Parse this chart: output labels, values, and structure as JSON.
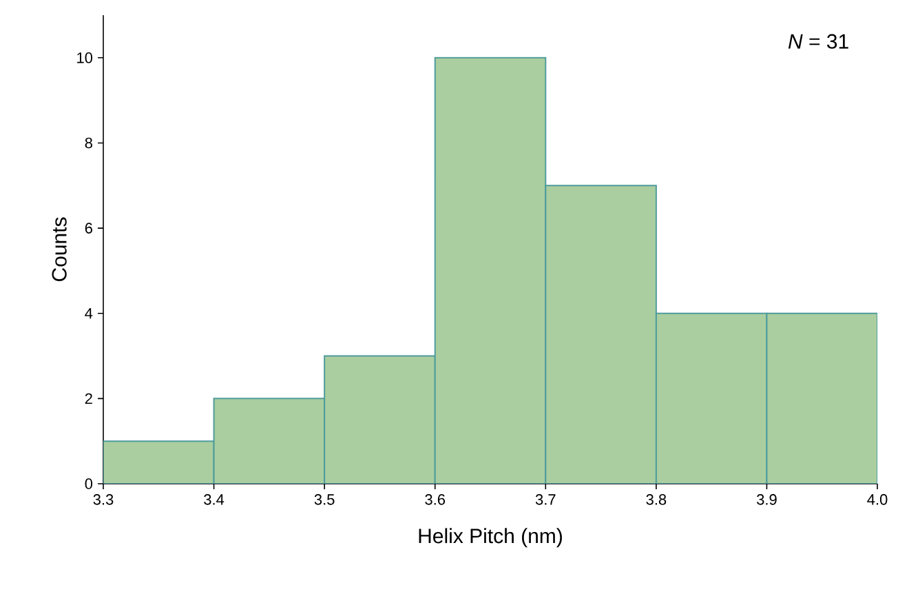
{
  "chart_data": {
    "type": "histogram",
    "xlabel": "Helix Pitch (nm)",
    "ylabel": "Counts",
    "bins": [
      3.3,
      3.4,
      3.5,
      3.6,
      3.7,
      3.8,
      3.9,
      4.0
    ],
    "values": [
      1,
      2,
      3,
      10,
      7,
      4,
      4
    ],
    "color": "#abcea0",
    "xlim": [
      3.3,
      4.0
    ],
    "ylim": [
      0,
      11
    ],
    "xticks": [
      3.3,
      3.4,
      3.5,
      3.6,
      3.7,
      3.8,
      3.9,
      {
        "value": 4.0,
        "label": "4.0"
      }
    ],
    "yticks": [
      0,
      2,
      4,
      6,
      8,
      10
    ],
    "annotations": [
      "*N* = 31"
    ],
    "grid": false
  }
}
